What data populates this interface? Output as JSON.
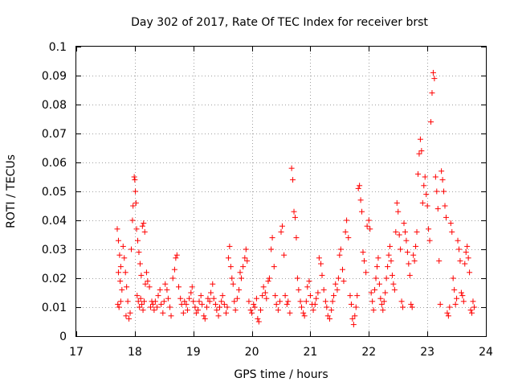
{
  "chart_data": {
    "type": "scatter",
    "title": "Day 302 of 2017, Rate Of TEC Index for receiver brst",
    "xlabel": "GPS time / hours",
    "ylabel": "ROTI / TECUs",
    "xlim": [
      17,
      24
    ],
    "ylim": [
      0,
      0.1
    ],
    "x_ticks": [
      "17",
      "18",
      "19",
      "20",
      "21",
      "22",
      "23",
      "24"
    ],
    "y_ticks": [
      "0",
      "0.01",
      "0.02",
      "0.03",
      "0.04",
      "0.05",
      "0.06",
      "0.07",
      "0.08",
      "0.09",
      "0.1"
    ],
    "grid": true,
    "marker": "+",
    "color": "#ff0000",
    "series": [
      {
        "points": [
          [
            17.7,
            0.037
          ],
          [
            17.72,
            0.033
          ],
          [
            17.74,
            0.028
          ],
          [
            17.76,
            0.024
          ],
          [
            17.72,
            0.022
          ],
          [
            17.75,
            0.019
          ],
          [
            17.78,
            0.016
          ],
          [
            17.71,
            0.011
          ],
          [
            17.73,
            0.01
          ],
          [
            17.76,
            0.012
          ],
          [
            17.8,
            0.031
          ],
          [
            17.82,
            0.027
          ],
          [
            17.84,
            0.022
          ],
          [
            17.86,
            0.017
          ],
          [
            17.88,
            0.012
          ],
          [
            17.85,
            0.007
          ],
          [
            17.9,
            0.006
          ],
          [
            17.92,
            0.008
          ],
          [
            17.94,
            0.03
          ],
          [
            17.96,
            0.04
          ],
          [
            17.97,
            0.045
          ],
          [
            17.99,
            0.055
          ],
          [
            18.0,
            0.054
          ],
          [
            18.01,
            0.05
          ],
          [
            18.02,
            0.046
          ],
          [
            18.03,
            0.037
          ],
          [
            18.05,
            0.033
          ],
          [
            18.07,
            0.029
          ],
          [
            18.09,
            0.025
          ],
          [
            18.11,
            0.021
          ],
          [
            18.13,
            0.038
          ],
          [
            18.15,
            0.039
          ],
          [
            18.17,
            0.036
          ],
          [
            18.04,
            0.014
          ],
          [
            18.06,
            0.012
          ],
          [
            18.08,
            0.01
          ],
          [
            18.1,
            0.013
          ],
          [
            18.12,
            0.011
          ],
          [
            18.14,
            0.009
          ],
          [
            18.16,
            0.012
          ],
          [
            18.18,
            0.018
          ],
          [
            18.2,
            0.022
          ],
          [
            18.22,
            0.019
          ],
          [
            18.25,
            0.017
          ],
          [
            18.27,
            0.01
          ],
          [
            18.29,
            0.012
          ],
          [
            18.31,
            0.011
          ],
          [
            18.33,
            0.009
          ],
          [
            18.35,
            0.012
          ],
          [
            18.38,
            0.01
          ],
          [
            18.4,
            0.014
          ],
          [
            18.43,
            0.016
          ],
          [
            18.45,
            0.011
          ],
          [
            18.48,
            0.008
          ],
          [
            18.5,
            0.012
          ],
          [
            18.52,
            0.018
          ],
          [
            18.55,
            0.016
          ],
          [
            18.57,
            0.013
          ],
          [
            18.6,
            0.01
          ],
          [
            18.62,
            0.007
          ],
          [
            18.65,
            0.02
          ],
          [
            18.68,
            0.023
          ],
          [
            18.7,
            0.027
          ],
          [
            18.72,
            0.028
          ],
          [
            18.75,
            0.017
          ],
          [
            18.78,
            0.013
          ],
          [
            18.8,
            0.011
          ],
          [
            18.83,
            0.008
          ],
          [
            18.85,
            0.012
          ],
          [
            18.88,
            0.011
          ],
          [
            18.9,
            0.009
          ],
          [
            18.93,
            0.013
          ],
          [
            18.96,
            0.015
          ],
          [
            18.98,
            0.017
          ],
          [
            19.0,
            0.012
          ],
          [
            19.03,
            0.01
          ],
          [
            19.05,
            0.008
          ],
          [
            19.08,
            0.009
          ],
          [
            19.1,
            0.012
          ],
          [
            19.13,
            0.014
          ],
          [
            19.15,
            0.011
          ],
          [
            19.18,
            0.007
          ],
          [
            19.2,
            0.006
          ],
          [
            19.23,
            0.01
          ],
          [
            19.25,
            0.013
          ],
          [
            19.28,
            0.012
          ],
          [
            19.3,
            0.015
          ],
          [
            19.33,
            0.018
          ],
          [
            19.35,
            0.013
          ],
          [
            19.38,
            0.011
          ],
          [
            19.4,
            0.009
          ],
          [
            19.43,
            0.007
          ],
          [
            19.45,
            0.01
          ],
          [
            19.48,
            0.012
          ],
          [
            19.5,
            0.014
          ],
          [
            19.53,
            0.011
          ],
          [
            19.56,
            0.008
          ],
          [
            19.58,
            0.01
          ],
          [
            19.6,
            0.027
          ],
          [
            19.62,
            0.031
          ],
          [
            19.64,
            0.024
          ],
          [
            19.66,
            0.02
          ],
          [
            19.68,
            0.018
          ],
          [
            19.7,
            0.012
          ],
          [
            19.72,
            0.009
          ],
          [
            19.75,
            0.013
          ],
          [
            19.78,
            0.016
          ],
          [
            19.8,
            0.022
          ],
          [
            19.82,
            0.02
          ],
          [
            19.85,
            0.024
          ],
          [
            19.88,
            0.027
          ],
          [
            19.9,
            0.03
          ],
          [
            19.92,
            0.026
          ],
          [
            19.95,
            0.012
          ],
          [
            19.98,
            0.009
          ],
          [
            20.0,
            0.008
          ],
          [
            20.03,
            0.011
          ],
          [
            20.05,
            0.01
          ],
          [
            20.08,
            0.013
          ],
          [
            20.1,
            0.006
          ],
          [
            20.12,
            0.005
          ],
          [
            20.15,
            0.009
          ],
          [
            20.18,
            0.014
          ],
          [
            20.2,
            0.017
          ],
          [
            20.23,
            0.015
          ],
          [
            20.25,
            0.013
          ],
          [
            20.28,
            0.019
          ],
          [
            20.3,
            0.02
          ],
          [
            20.33,
            0.03
          ],
          [
            20.35,
            0.034
          ],
          [
            20.38,
            0.024
          ],
          [
            20.4,
            0.014
          ],
          [
            20.42,
            0.011
          ],
          [
            20.45,
            0.009
          ],
          [
            20.48,
            0.012
          ],
          [
            20.5,
            0.036
          ],
          [
            20.52,
            0.038
          ],
          [
            20.55,
            0.028
          ],
          [
            20.57,
            0.014
          ],
          [
            20.6,
            0.011
          ],
          [
            20.62,
            0.012
          ],
          [
            20.65,
            0.008
          ],
          [
            20.68,
            0.058
          ],
          [
            20.7,
            0.054
          ],
          [
            20.72,
            0.043
          ],
          [
            20.74,
            0.041
          ],
          [
            20.76,
            0.034
          ],
          [
            20.78,
            0.02
          ],
          [
            20.8,
            0.016
          ],
          [
            20.83,
            0.012
          ],
          [
            20.85,
            0.01
          ],
          [
            20.88,
            0.008
          ],
          [
            20.9,
            0.007
          ],
          [
            20.93,
            0.012
          ],
          [
            20.95,
            0.017
          ],
          [
            20.98,
            0.019
          ],
          [
            21.0,
            0.014
          ],
          [
            21.03,
            0.011
          ],
          [
            21.05,
            0.009
          ],
          [
            21.08,
            0.011
          ],
          [
            21.1,
            0.013
          ],
          [
            21.13,
            0.015
          ],
          [
            21.15,
            0.027
          ],
          [
            21.18,
            0.025
          ],
          [
            21.2,
            0.021
          ],
          [
            21.23,
            0.016
          ],
          [
            21.26,
            0.012
          ],
          [
            21.28,
            0.01
          ],
          [
            21.3,
            0.007
          ],
          [
            21.33,
            0.006
          ],
          [
            21.36,
            0.009
          ],
          [
            21.38,
            0.012
          ],
          [
            21.4,
            0.014
          ],
          [
            21.43,
            0.018
          ],
          [
            21.46,
            0.016
          ],
          [
            21.48,
            0.02
          ],
          [
            21.5,
            0.028
          ],
          [
            21.52,
            0.03
          ],
          [
            21.55,
            0.023
          ],
          [
            21.57,
            0.019
          ],
          [
            21.6,
            0.036
          ],
          [
            21.62,
            0.04
          ],
          [
            21.65,
            0.034
          ],
          [
            21.68,
            0.014
          ],
          [
            21.7,
            0.011
          ],
          [
            21.72,
            0.006
          ],
          [
            21.74,
            0.004
          ],
          [
            21.76,
            0.007
          ],
          [
            21.78,
            0.01
          ],
          [
            21.8,
            0.014
          ],
          [
            21.82,
            0.051
          ],
          [
            21.84,
            0.052
          ],
          [
            21.86,
            0.047
          ],
          [
            21.88,
            0.043
          ],
          [
            21.9,
            0.029
          ],
          [
            21.92,
            0.026
          ],
          [
            21.95,
            0.022
          ],
          [
            21.97,
            0.038
          ],
          [
            22.0,
            0.04
          ],
          [
            22.02,
            0.037
          ],
          [
            22.04,
            0.015
          ],
          [
            22.06,
            0.012
          ],
          [
            22.08,
            0.009
          ],
          [
            22.1,
            0.016
          ],
          [
            22.12,
            0.02
          ],
          [
            22.14,
            0.024
          ],
          [
            22.16,
            0.027
          ],
          [
            22.18,
            0.018
          ],
          [
            22.2,
            0.013
          ],
          [
            22.22,
            0.011
          ],
          [
            22.24,
            0.009
          ],
          [
            22.26,
            0.012
          ],
          [
            22.28,
            0.015
          ],
          [
            22.3,
            0.02
          ],
          [
            22.32,
            0.024
          ],
          [
            22.34,
            0.028
          ],
          [
            22.36,
            0.031
          ],
          [
            22.38,
            0.026
          ],
          [
            22.4,
            0.021
          ],
          [
            22.42,
            0.018
          ],
          [
            22.44,
            0.016
          ],
          [
            22.46,
            0.036
          ],
          [
            22.48,
            0.046
          ],
          [
            22.5,
            0.043
          ],
          [
            22.52,
            0.035
          ],
          [
            22.54,
            0.03
          ],
          [
            22.56,
            0.012
          ],
          [
            22.58,
            0.01
          ],
          [
            22.6,
            0.039
          ],
          [
            22.62,
            0.036
          ],
          [
            22.64,
            0.033
          ],
          [
            22.66,
            0.029
          ],
          [
            22.68,
            0.025
          ],
          [
            22.7,
            0.021
          ],
          [
            22.72,
            0.011
          ],
          [
            22.74,
            0.01
          ],
          [
            22.76,
            0.028
          ],
          [
            22.78,
            0.026
          ],
          [
            22.8,
            0.031
          ],
          [
            22.82,
            0.036
          ],
          [
            22.84,
            0.056
          ],
          [
            22.86,
            0.063
          ],
          [
            22.88,
            0.068
          ],
          [
            22.9,
            0.064
          ],
          [
            22.92,
            0.046
          ],
          [
            22.94,
            0.052
          ],
          [
            22.96,
            0.055
          ],
          [
            22.98,
            0.049
          ],
          [
            23.0,
            0.045
          ],
          [
            23.02,
            0.037
          ],
          [
            23.04,
            0.033
          ],
          [
            23.06,
            0.074
          ],
          [
            23.08,
            0.084
          ],
          [
            23.1,
            0.091
          ],
          [
            23.12,
            0.089
          ],
          [
            23.14,
            0.055
          ],
          [
            23.16,
            0.05
          ],
          [
            23.18,
            0.044
          ],
          [
            23.2,
            0.026
          ],
          [
            23.22,
            0.011
          ],
          [
            23.24,
            0.057
          ],
          [
            23.26,
            0.054
          ],
          [
            23.28,
            0.05
          ],
          [
            23.3,
            0.045
          ],
          [
            23.32,
            0.041
          ],
          [
            23.34,
            0.008
          ],
          [
            23.36,
            0.007
          ],
          [
            23.38,
            0.01
          ],
          [
            23.4,
            0.039
          ],
          [
            23.42,
            0.036
          ],
          [
            23.44,
            0.02
          ],
          [
            23.46,
            0.016
          ],
          [
            23.48,
            0.011
          ],
          [
            23.5,
            0.013
          ],
          [
            23.52,
            0.033
          ],
          [
            23.54,
            0.03
          ],
          [
            23.56,
            0.026
          ],
          [
            23.58,
            0.015
          ],
          [
            23.6,
            0.014
          ],
          [
            23.62,
            0.012
          ],
          [
            23.64,
            0.025
          ],
          [
            23.66,
            0.029
          ],
          [
            23.68,
            0.031
          ],
          [
            23.7,
            0.027
          ],
          [
            23.72,
            0.022
          ],
          [
            23.74,
            0.009
          ],
          [
            23.76,
            0.008
          ],
          [
            23.78,
            0.012
          ],
          [
            23.8,
            0.01
          ]
        ]
      }
    ]
  }
}
